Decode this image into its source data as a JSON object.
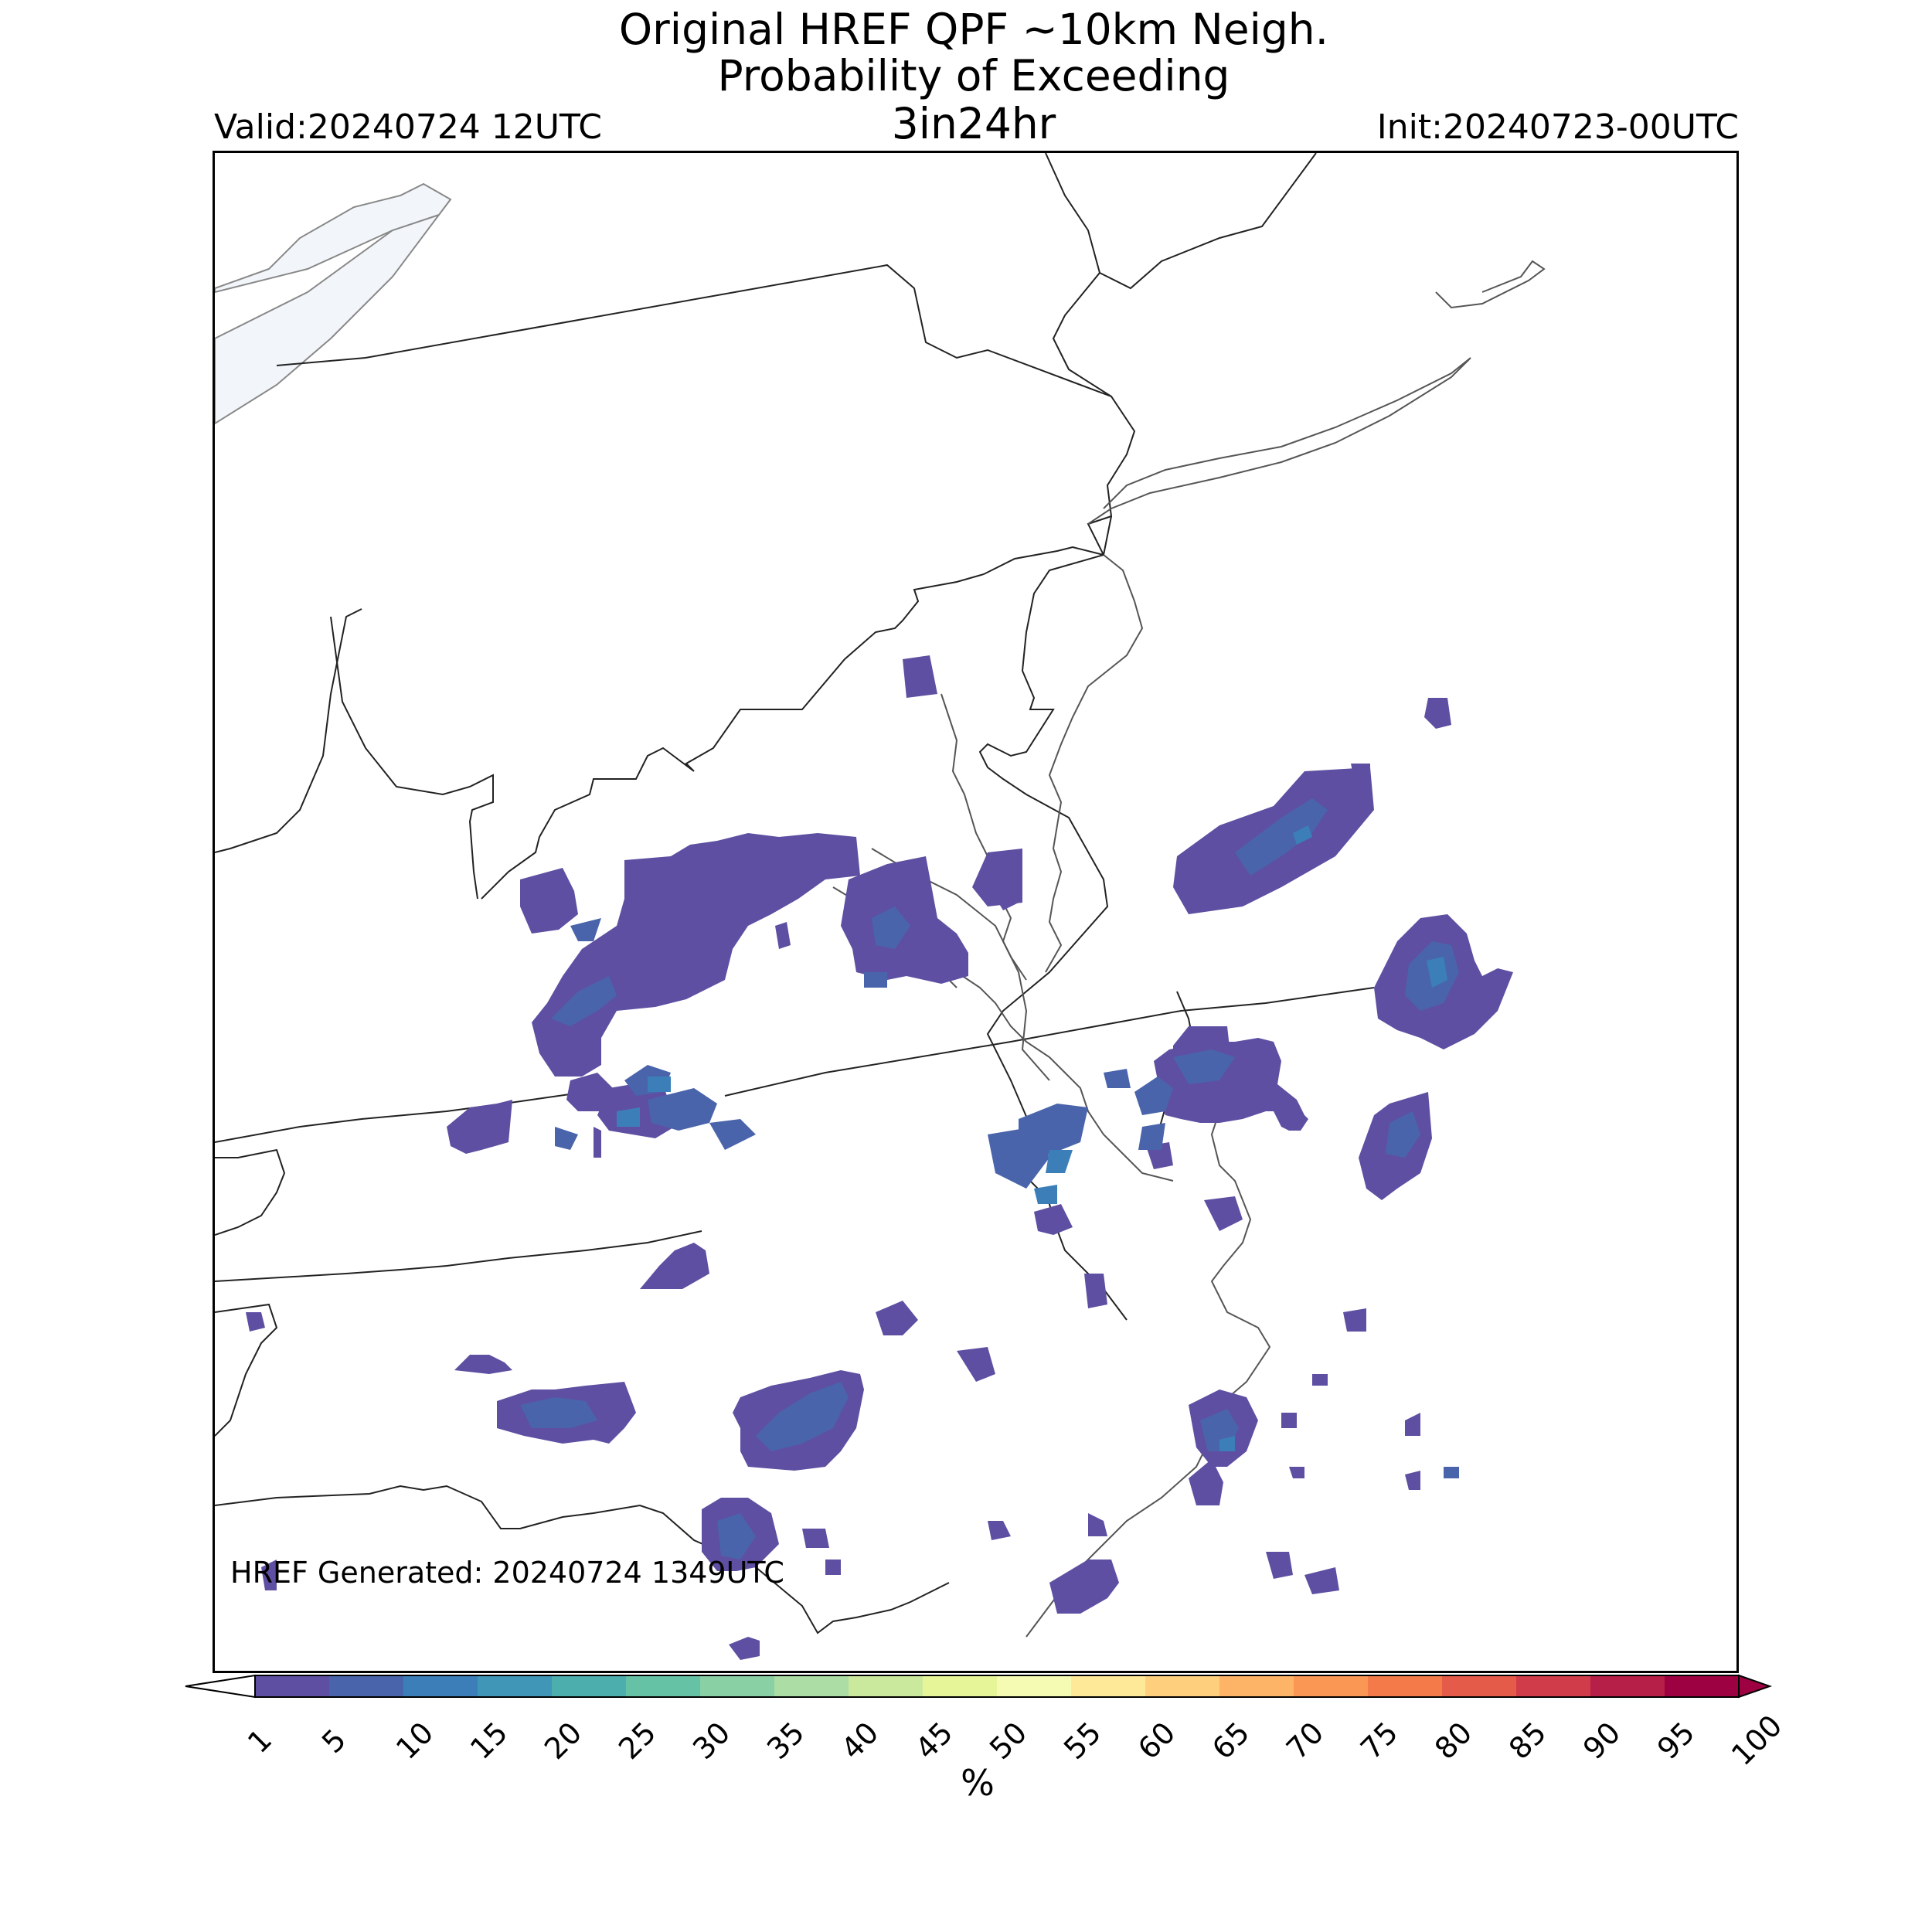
{
  "title": {
    "line1": "Original HREF QPF ~10km Neigh.",
    "line2": "Probability of Exceeding",
    "line3": "3in24hr"
  },
  "valid_label": "Valid:20240724 12UTC",
  "init_label": "Init:20240723-00UTC",
  "generated_label": "HREF Generated: 20240724 1349UTC",
  "colorbar": {
    "units": "%",
    "ticks": [
      "1",
      "5",
      "10",
      "15",
      "20",
      "25",
      "30",
      "35",
      "40",
      "45",
      "50",
      "55",
      "60",
      "65",
      "70",
      "75",
      "80",
      "85",
      "90",
      "95",
      "100"
    ],
    "colors": [
      "#5e4fa2",
      "#4a64ac",
      "#3c7fb8",
      "#3f96b7",
      "#4daeae",
      "#66c2a5",
      "#89d0a4",
      "#abdda4",
      "#cbe99d",
      "#e6f598",
      "#f5fbb2",
      "#fee999",
      "#fed07e",
      "#fdb466",
      "#fa9755",
      "#f47a4a",
      "#e45c49",
      "#d13c4b",
      "#b51f48",
      "#9e0142"
    ],
    "extend_low_color": "#ffffff",
    "extend_high_color": "#9e0142"
  },
  "map": {
    "region": "Mid-Atlantic US and offshore Atlantic",
    "land_color": "#ffffff",
    "lake_color": "#f2f6fb",
    "border_color": "#222222",
    "coast_color": "#555555",
    "prob_low_color": "#5e4fa2",
    "prob_mid_color": "#4a64ac",
    "prob_high_color": "#3c7fb8"
  }
}
